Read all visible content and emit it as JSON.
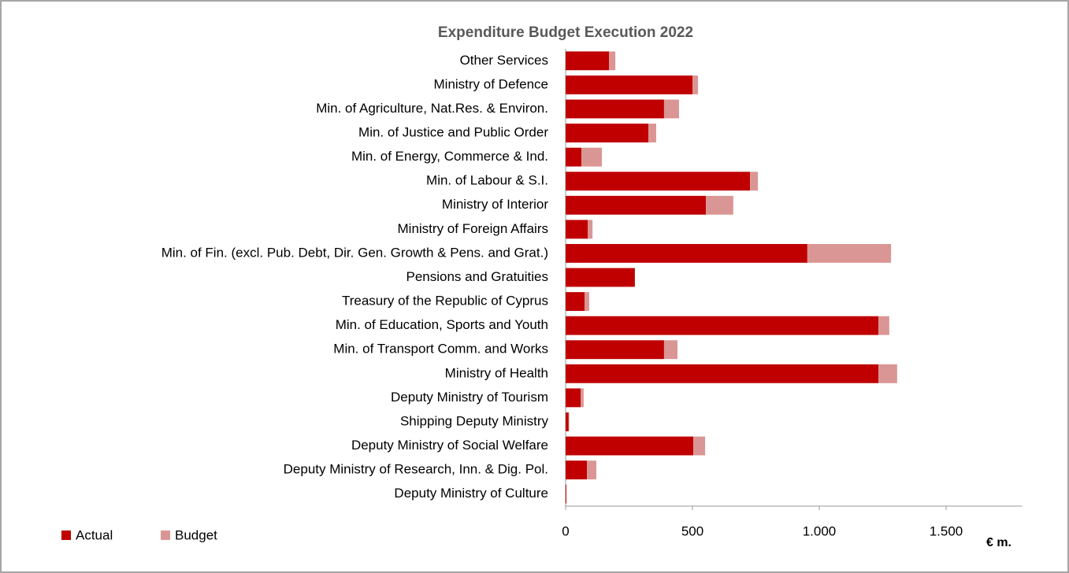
{
  "chart_data": {
    "type": "bar",
    "orientation": "horizontal",
    "stacked": true,
    "title": "Expenditure Budget Execution 2022",
    "xlabel": "€ m.",
    "categories": [
      "Other Services",
      "Ministry of Defence",
      "Min. of Agriculture, Nat.Res. & Environ.",
      "Min. of Justice and Public Order",
      "Min. of Energy, Commerce & Ind.",
      "Min. of Labour & S.I.",
      "Ministry of Interior",
      "Ministry of Foreign Affairs",
      "Min. of Fin. (excl. Pub. Debt, Dir. Gen. Growth & Pens. and Grat.)",
      "Pensions and Gratuities",
      "Treasury of the Republic of Cyprus",
      "Min. of Education, Sports and Youth",
      "Min. of Transport Comm. and Works",
      "Ministry of Health",
      "Deputy Ministry of Tourism",
      "Shipping Deputy Ministry",
      "Deputy Ministry of Social Welfare",
      "Deputy Ministry of Research, Inn. & Dig. Pol.",
      "Deputy Ministry of Culture"
    ],
    "series": [
      {
        "name": "Actual",
        "color": "#c00000",
        "values": [
          171,
          500,
          388,
          326,
          62,
          727,
          553,
          87,
          953,
          273,
          75,
          1233,
          388,
          1233,
          59,
          12,
          503,
          84,
          3
        ]
      },
      {
        "name": "Budget",
        "color": "#da9694",
        "values": [
          25,
          22,
          59,
          31,
          81,
          31,
          108,
          19,
          330,
          0,
          18,
          43,
          53,
          74,
          12,
          2,
          47,
          37,
          0
        ]
      }
    ],
    "xlim": [
      0,
      1800
    ],
    "xticks": [
      0,
      500,
      {
        "value": 1000,
        "label": "1.000"
      },
      {
        "value": 1500,
        "label": "1.500"
      }
    ],
    "legend": "bottom-left"
  }
}
